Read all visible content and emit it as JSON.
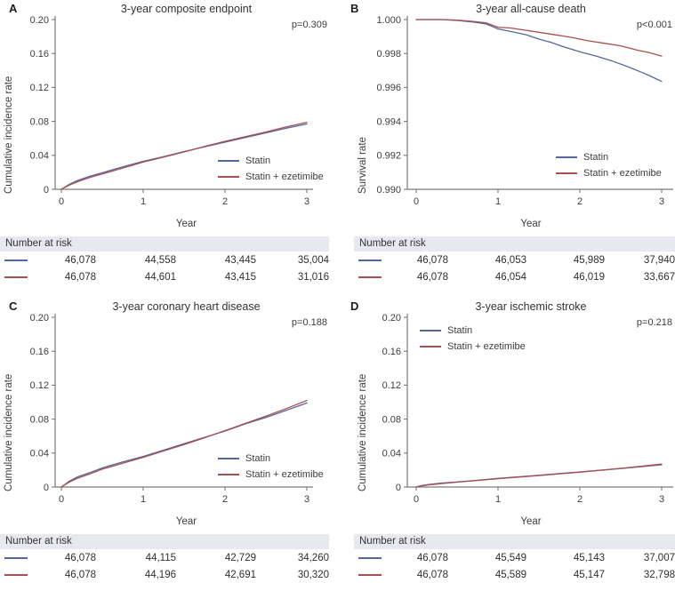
{
  "figure_colors": {
    "statin": "#5567a0",
    "ezetimibe": "#a8504f",
    "axis": "#7a7a7a",
    "band": "#e8e8f1"
  },
  "risk_header_label": "Number at risk",
  "chart_data": [
    {
      "type": "line",
      "letter": "A",
      "title": "3-year composite endpoint",
      "pvalue": "p=0.309",
      "xlabel": "Year",
      "ylabel": "Cumulative incidence rate",
      "xmax": 3,
      "xticks": [
        0,
        1,
        2,
        3
      ],
      "xtick_labels": [
        "0",
        "1",
        "2",
        "3"
      ],
      "ylim": [
        0,
        0.2
      ],
      "ytick_values": [
        0,
        0.04,
        0.08,
        0.12,
        0.16,
        0.2
      ],
      "ytick_labels": [
        "0",
        "0.04",
        "0.08",
        "0.12",
        "0.16",
        "0.20"
      ],
      "legend_pos": "right-bottom",
      "series": [
        {
          "name": "Statin",
          "color": "#5567a0",
          "points": [
            [
              0,
              0
            ],
            [
              0.05,
              0.003
            ],
            [
              0.1,
              0.006
            ],
            [
              0.2,
              0.0105
            ],
            [
              0.35,
              0.0155
            ],
            [
              0.5,
              0.0195
            ],
            [
              0.75,
              0.0265
            ],
            [
              1,
              0.033
            ],
            [
              1.25,
              0.0385
            ],
            [
              1.5,
              0.0445
            ],
            [
              1.75,
              0.05
            ],
            [
              2,
              0.0555
            ],
            [
              2.25,
              0.061
            ],
            [
              2.5,
              0.0665
            ],
            [
              2.75,
              0.072
            ],
            [
              3,
              0.077
            ]
          ]
        },
        {
          "name": "Statin + ezetimibe",
          "color": "#a8504f",
          "points": [
            [
              0,
              0
            ],
            [
              0.05,
              0.0025
            ],
            [
              0.1,
              0.005
            ],
            [
              0.2,
              0.009
            ],
            [
              0.35,
              0.014
            ],
            [
              0.5,
              0.018
            ],
            [
              0.75,
              0.025
            ],
            [
              1,
              0.032
            ],
            [
              1.25,
              0.038
            ],
            [
              1.5,
              0.044
            ],
            [
              1.75,
              0.0505
            ],
            [
              2,
              0.0565
            ],
            [
              2.25,
              0.062
            ],
            [
              2.5,
              0.0675
            ],
            [
              2.75,
              0.0735
            ],
            [
              3,
              0.079
            ]
          ]
        }
      ],
      "risk": {
        "rows": [
          {
            "group": "Statin",
            "values": [
              "46,078",
              "44,558",
              "43,445",
              "35,004"
            ]
          },
          {
            "group": "Statin + ezetimibe",
            "values": [
              "46,078",
              "44,601",
              "43,415",
              "31,016"
            ]
          }
        ]
      }
    },
    {
      "type": "line",
      "letter": "B",
      "title": "3-year all-cause death",
      "pvalue": "p<0.001",
      "xlabel": "Year",
      "ylabel": "Survival rate",
      "xmax": 3,
      "xticks": [
        0,
        1,
        2,
        3
      ],
      "xtick_labels": [
        "0",
        "1",
        "2",
        "3"
      ],
      "ylim": [
        0.99,
        1.0
      ],
      "ytick_values": [
        0.99,
        0.992,
        0.994,
        0.996,
        0.998,
        1.0
      ],
      "ytick_labels": [
        "0.990",
        "0.992",
        "0.994",
        "0.996",
        "0.998",
        "1.000"
      ],
      "legend_pos": "right-bottom",
      "series": [
        {
          "name": "Statin",
          "color": "#5567a0",
          "points": [
            [
              0,
              1
            ],
            [
              0.3,
              1
            ],
            [
              0.5,
              0.99995
            ],
            [
              0.7,
              0.99985
            ],
            [
              0.85,
              0.99975
            ],
            [
              1,
              0.99945
            ],
            [
              1.1,
              0.99935
            ],
            [
              1.2,
              0.99925
            ],
            [
              1.35,
              0.9991
            ],
            [
              1.5,
              0.99885
            ],
            [
              1.65,
              0.99865
            ],
            [
              1.8,
              0.9984
            ],
            [
              2,
              0.9981
            ],
            [
              2.2,
              0.99785
            ],
            [
              2.4,
              0.99755
            ],
            [
              2.6,
              0.9972
            ],
            [
              2.75,
              0.9969
            ],
            [
              2.85,
              0.9967
            ],
            [
              3,
              0.99635
            ]
          ]
        },
        {
          "name": "Statin + ezetimibe",
          "color": "#a8504f",
          "points": [
            [
              0,
              1
            ],
            [
              0.3,
              1
            ],
            [
              0.5,
              0.99997
            ],
            [
              0.7,
              0.99989
            ],
            [
              0.85,
              0.99981
            ],
            [
              1,
              0.99955
            ],
            [
              1.15,
              0.9995
            ],
            [
              1.3,
              0.9994
            ],
            [
              1.5,
              0.99925
            ],
            [
              1.7,
              0.9991
            ],
            [
              1.9,
              0.99895
            ],
            [
              2.1,
              0.99875
            ],
            [
              2.3,
              0.9986
            ],
            [
              2.5,
              0.99845
            ],
            [
              2.7,
              0.9982
            ],
            [
              2.85,
              0.99805
            ],
            [
              3,
              0.99785
            ]
          ]
        }
      ],
      "risk": {
        "rows": [
          {
            "group": "Statin",
            "values": [
              "46,078",
              "46,053",
              "45,989",
              "37,940"
            ]
          },
          {
            "group": "Statin + ezetimibe",
            "values": [
              "46,078",
              "46,054",
              "46,019",
              "33,667"
            ]
          }
        ]
      }
    },
    {
      "type": "line",
      "letter": "C",
      "title": "3-year coronary heart disease",
      "pvalue": "p=0.188",
      "xlabel": "Year",
      "ylabel": "Cumulative incidence rate",
      "xmax": 3,
      "xticks": [
        0,
        1,
        2,
        3
      ],
      "xtick_labels": [
        "0",
        "1",
        "2",
        "3"
      ],
      "ylim": [
        0,
        0.2
      ],
      "ytick_values": [
        0,
        0.04,
        0.08,
        0.12,
        0.16,
        0.2
      ],
      "ytick_labels": [
        "0",
        "0.04",
        "0.08",
        "0.12",
        "0.16",
        "0.20"
      ],
      "legend_pos": "right-bottom",
      "series": [
        {
          "name": "Statin",
          "color": "#5567a0",
          "points": [
            [
              0,
              0
            ],
            [
              0.05,
              0.0035
            ],
            [
              0.1,
              0.007
            ],
            [
              0.2,
              0.012
            ],
            [
              0.35,
              0.017
            ],
            [
              0.5,
              0.0225
            ],
            [
              0.75,
              0.0295
            ],
            [
              1,
              0.036
            ],
            [
              1.25,
              0.0435
            ],
            [
              1.5,
              0.051
            ],
            [
              1.75,
              0.0585
            ],
            [
              2,
              0.066
            ],
            [
              2.25,
              0.0745
            ],
            [
              2.5,
              0.082
            ],
            [
              2.75,
              0.0905
            ],
            [
              3,
              0.099
            ]
          ]
        },
        {
          "name": "Statin + ezetimibe",
          "color": "#a8504f",
          "points": [
            [
              0,
              0
            ],
            [
              0.05,
              0.003
            ],
            [
              0.1,
              0.006
            ],
            [
              0.2,
              0.0105
            ],
            [
              0.35,
              0.0155
            ],
            [
              0.5,
              0.021
            ],
            [
              0.75,
              0.028
            ],
            [
              1,
              0.035
            ],
            [
              1.25,
              0.0425
            ],
            [
              1.5,
              0.05
            ],
            [
              1.75,
              0.058
            ],
            [
              2,
              0.0665
            ],
            [
              2.25,
              0.075
            ],
            [
              2.5,
              0.0835
            ],
            [
              2.75,
              0.0925
            ],
            [
              3,
              0.102
            ]
          ]
        }
      ],
      "risk": {
        "rows": [
          {
            "group": "Statin",
            "values": [
              "46,078",
              "44,115",
              "42,729",
              "34,260"
            ]
          },
          {
            "group": "Statin + ezetimibe",
            "values": [
              "46,078",
              "44,196",
              "42,691",
              "30,320"
            ]
          }
        ]
      }
    },
    {
      "type": "line",
      "letter": "D",
      "title": "3-year ischemic stroke",
      "pvalue": "p=0.218",
      "xlabel": "Year",
      "ylabel": "Cumulative incidence rate",
      "xmax": 3,
      "xticks": [
        0,
        1,
        2,
        3
      ],
      "xtick_labels": [
        "0",
        "1",
        "2",
        "3"
      ],
      "ylim": [
        0,
        0.2
      ],
      "ytick_values": [
        0,
        0.04,
        0.08,
        0.12,
        0.16,
        0.2
      ],
      "ytick_labels": [
        "0",
        "0.04",
        "0.08",
        "0.12",
        "0.16",
        "0.20"
      ],
      "legend_pos": "top-left",
      "series": [
        {
          "name": "Statin",
          "color": "#5567a0",
          "points": [
            [
              0,
              0
            ],
            [
              0.05,
              0.0015
            ],
            [
              0.15,
              0.003
            ],
            [
              0.3,
              0.0045
            ],
            [
              0.5,
              0.006
            ],
            [
              0.75,
              0.008
            ],
            [
              1,
              0.0102
            ],
            [
              1.5,
              0.0138
            ],
            [
              2,
              0.0178
            ],
            [
              2.5,
              0.0218
            ],
            [
              3,
              0.0262
            ]
          ]
        },
        {
          "name": "Statin + ezetimibe",
          "color": "#a8504f",
          "points": [
            [
              0,
              0
            ],
            [
              0.05,
              0.001
            ],
            [
              0.15,
              0.0025
            ],
            [
              0.3,
              0.004
            ],
            [
              0.5,
              0.0058
            ],
            [
              0.75,
              0.0078
            ],
            [
              1,
              0.0098
            ],
            [
              1.5,
              0.0135
            ],
            [
              2,
              0.0175
            ],
            [
              2.5,
              0.022
            ],
            [
              3,
              0.027
            ]
          ]
        }
      ],
      "risk": {
        "rows": [
          {
            "group": "Statin",
            "values": [
              "46,078",
              "45,549",
              "45,143",
              "37,007"
            ]
          },
          {
            "group": "Statin + ezetimibe",
            "values": [
              "46,078",
              "45,589",
              "45,147",
              "32,798"
            ]
          }
        ]
      }
    }
  ]
}
